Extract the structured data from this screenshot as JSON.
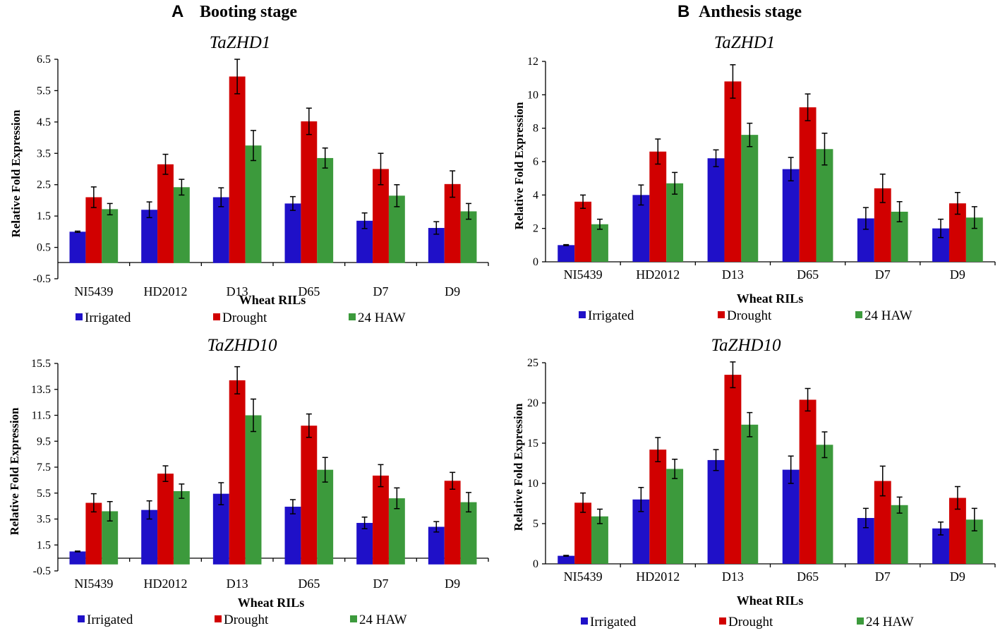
{
  "figure": {
    "panel_a": {
      "letter": "A",
      "title": "Booting stage"
    },
    "panel_b": {
      "letter": "B",
      "title": "Anthesis stage"
    }
  },
  "chart_data": [
    {
      "type": "bar",
      "panel": "A",
      "title": "TaZHD1",
      "xlabel": "Wheat RILs",
      "ylabel": "Relative Fold Expression",
      "categories": [
        "NI5439",
        "HD2012",
        "D13",
        "D65",
        "D7",
        "D9"
      ],
      "ylim": [
        -0.5,
        6.5
      ],
      "yticks": [
        "-0.5",
        "0.5",
        "1.5",
        "2.5",
        "3.5",
        "4.5",
        "5.5",
        "6.5"
      ],
      "series": [
        {
          "name": "Irrigated",
          "color": "#1f10c8",
          "values": [
            1.0,
            1.7,
            2.1,
            1.9,
            1.35,
            1.12
          ],
          "errors": [
            0.02,
            0.25,
            0.3,
            0.22,
            0.25,
            0.2
          ]
        },
        {
          "name": "Drought",
          "color": "#d10000",
          "values": [
            2.1,
            3.15,
            5.95,
            4.52,
            3.0,
            2.52
          ],
          "errors": [
            0.33,
            0.32,
            0.55,
            0.42,
            0.5,
            0.42
          ]
        },
        {
          "name": "24 HAW",
          "color": "#3c9a3c",
          "values": [
            1.72,
            2.42,
            3.75,
            3.35,
            2.15,
            1.65
          ],
          "errors": [
            0.18,
            0.25,
            0.48,
            0.32,
            0.35,
            0.25
          ]
        }
      ],
      "legend": [
        "Irrigated",
        "Drought",
        "24 HAW"
      ]
    },
    {
      "type": "bar",
      "panel": "B",
      "title": "TaZHD1",
      "xlabel": "Wheat RILs",
      "ylabel": "Relative Fold Expression",
      "categories": [
        "NI5439",
        "HD2012",
        "D13",
        "D65",
        "D7",
        "D9"
      ],
      "ylim": [
        0,
        12
      ],
      "yticks": [
        "0",
        "2",
        "4",
        "6",
        "8",
        "10",
        "12"
      ],
      "series": [
        {
          "name": "Irrigated",
          "color": "#1f10c8",
          "values": [
            1.0,
            4.0,
            6.2,
            5.55,
            2.6,
            2.0
          ],
          "errors": [
            0.03,
            0.6,
            0.5,
            0.7,
            0.65,
            0.55
          ]
        },
        {
          "name": "Drought",
          "color": "#d10000",
          "values": [
            3.6,
            6.6,
            10.8,
            9.25,
            4.4,
            3.5
          ],
          "errors": [
            0.4,
            0.75,
            1.0,
            0.8,
            0.85,
            0.65
          ]
        },
        {
          "name": "24 HAW",
          "color": "#3c9a3c",
          "values": [
            2.25,
            4.7,
            7.6,
            6.75,
            3.0,
            2.65
          ],
          "errors": [
            0.3,
            0.65,
            0.7,
            0.95,
            0.6,
            0.65
          ]
        }
      ],
      "legend": [
        "Irrigated",
        "Drought",
        "24 HAW"
      ]
    },
    {
      "type": "bar",
      "panel": "A",
      "title": "TaZHD10",
      "xlabel": "Wheat RILs",
      "ylabel": "Relative Fold Expression",
      "categories": [
        "NI5439",
        "HD2012",
        "D13",
        "D65",
        "D7",
        "D9"
      ],
      "ylim": [
        -0.5,
        15.5
      ],
      "yticks": [
        "-0.5",
        "1.5",
        "3.5",
        "5.5",
        "7.5",
        "9.5",
        "11.5",
        "13.5",
        "15.5"
      ],
      "series": [
        {
          "name": "Irrigated",
          "color": "#1f10c8",
          "values": [
            1.0,
            4.2,
            5.45,
            4.45,
            3.2,
            2.9
          ],
          "errors": [
            0.03,
            0.7,
            0.85,
            0.55,
            0.45,
            0.4
          ]
        },
        {
          "name": "Drought",
          "color": "#d10000",
          "values": [
            4.75,
            7.0,
            14.2,
            10.7,
            6.85,
            6.45
          ],
          "errors": [
            0.7,
            0.6,
            1.05,
            0.9,
            0.85,
            0.65
          ]
        },
        {
          "name": "24 HAW",
          "color": "#3c9a3c",
          "values": [
            4.1,
            5.65,
            11.5,
            7.3,
            5.1,
            4.8
          ],
          "errors": [
            0.75,
            0.55,
            1.25,
            0.95,
            0.8,
            0.75
          ]
        }
      ],
      "legend": [
        "Irrigated",
        "Drought",
        "24 HAW"
      ]
    },
    {
      "type": "bar",
      "panel": "B",
      "title": "TaZHD10",
      "xlabel": "Wheat RILs",
      "ylabel": "Relative Fold Expression",
      "categories": [
        "NI5439",
        "HD2012",
        "D13",
        "D65",
        "D7",
        "D9"
      ],
      "ylim": [
        0,
        25
      ],
      "yticks": [
        "0",
        "5",
        "10",
        "15",
        "20",
        "25"
      ],
      "series": [
        {
          "name": "Irrigated",
          "color": "#1f10c8",
          "values": [
            1.0,
            8.0,
            12.9,
            11.7,
            5.7,
            4.4
          ],
          "errors": [
            0.05,
            1.5,
            1.3,
            1.7,
            1.2,
            0.8
          ]
        },
        {
          "name": "Drought",
          "color": "#d10000",
          "values": [
            7.6,
            14.2,
            23.5,
            20.4,
            10.3,
            8.2
          ],
          "errors": [
            1.2,
            1.5,
            1.6,
            1.4,
            1.85,
            1.4
          ]
        },
        {
          "name": "24 HAW",
          "color": "#3c9a3c",
          "values": [
            5.9,
            11.8,
            17.3,
            14.8,
            7.3,
            5.5
          ],
          "errors": [
            0.9,
            1.2,
            1.5,
            1.6,
            1.0,
            1.4
          ]
        }
      ],
      "legend": [
        "Irrigated",
        "Drought",
        "24 HAW"
      ]
    }
  ]
}
